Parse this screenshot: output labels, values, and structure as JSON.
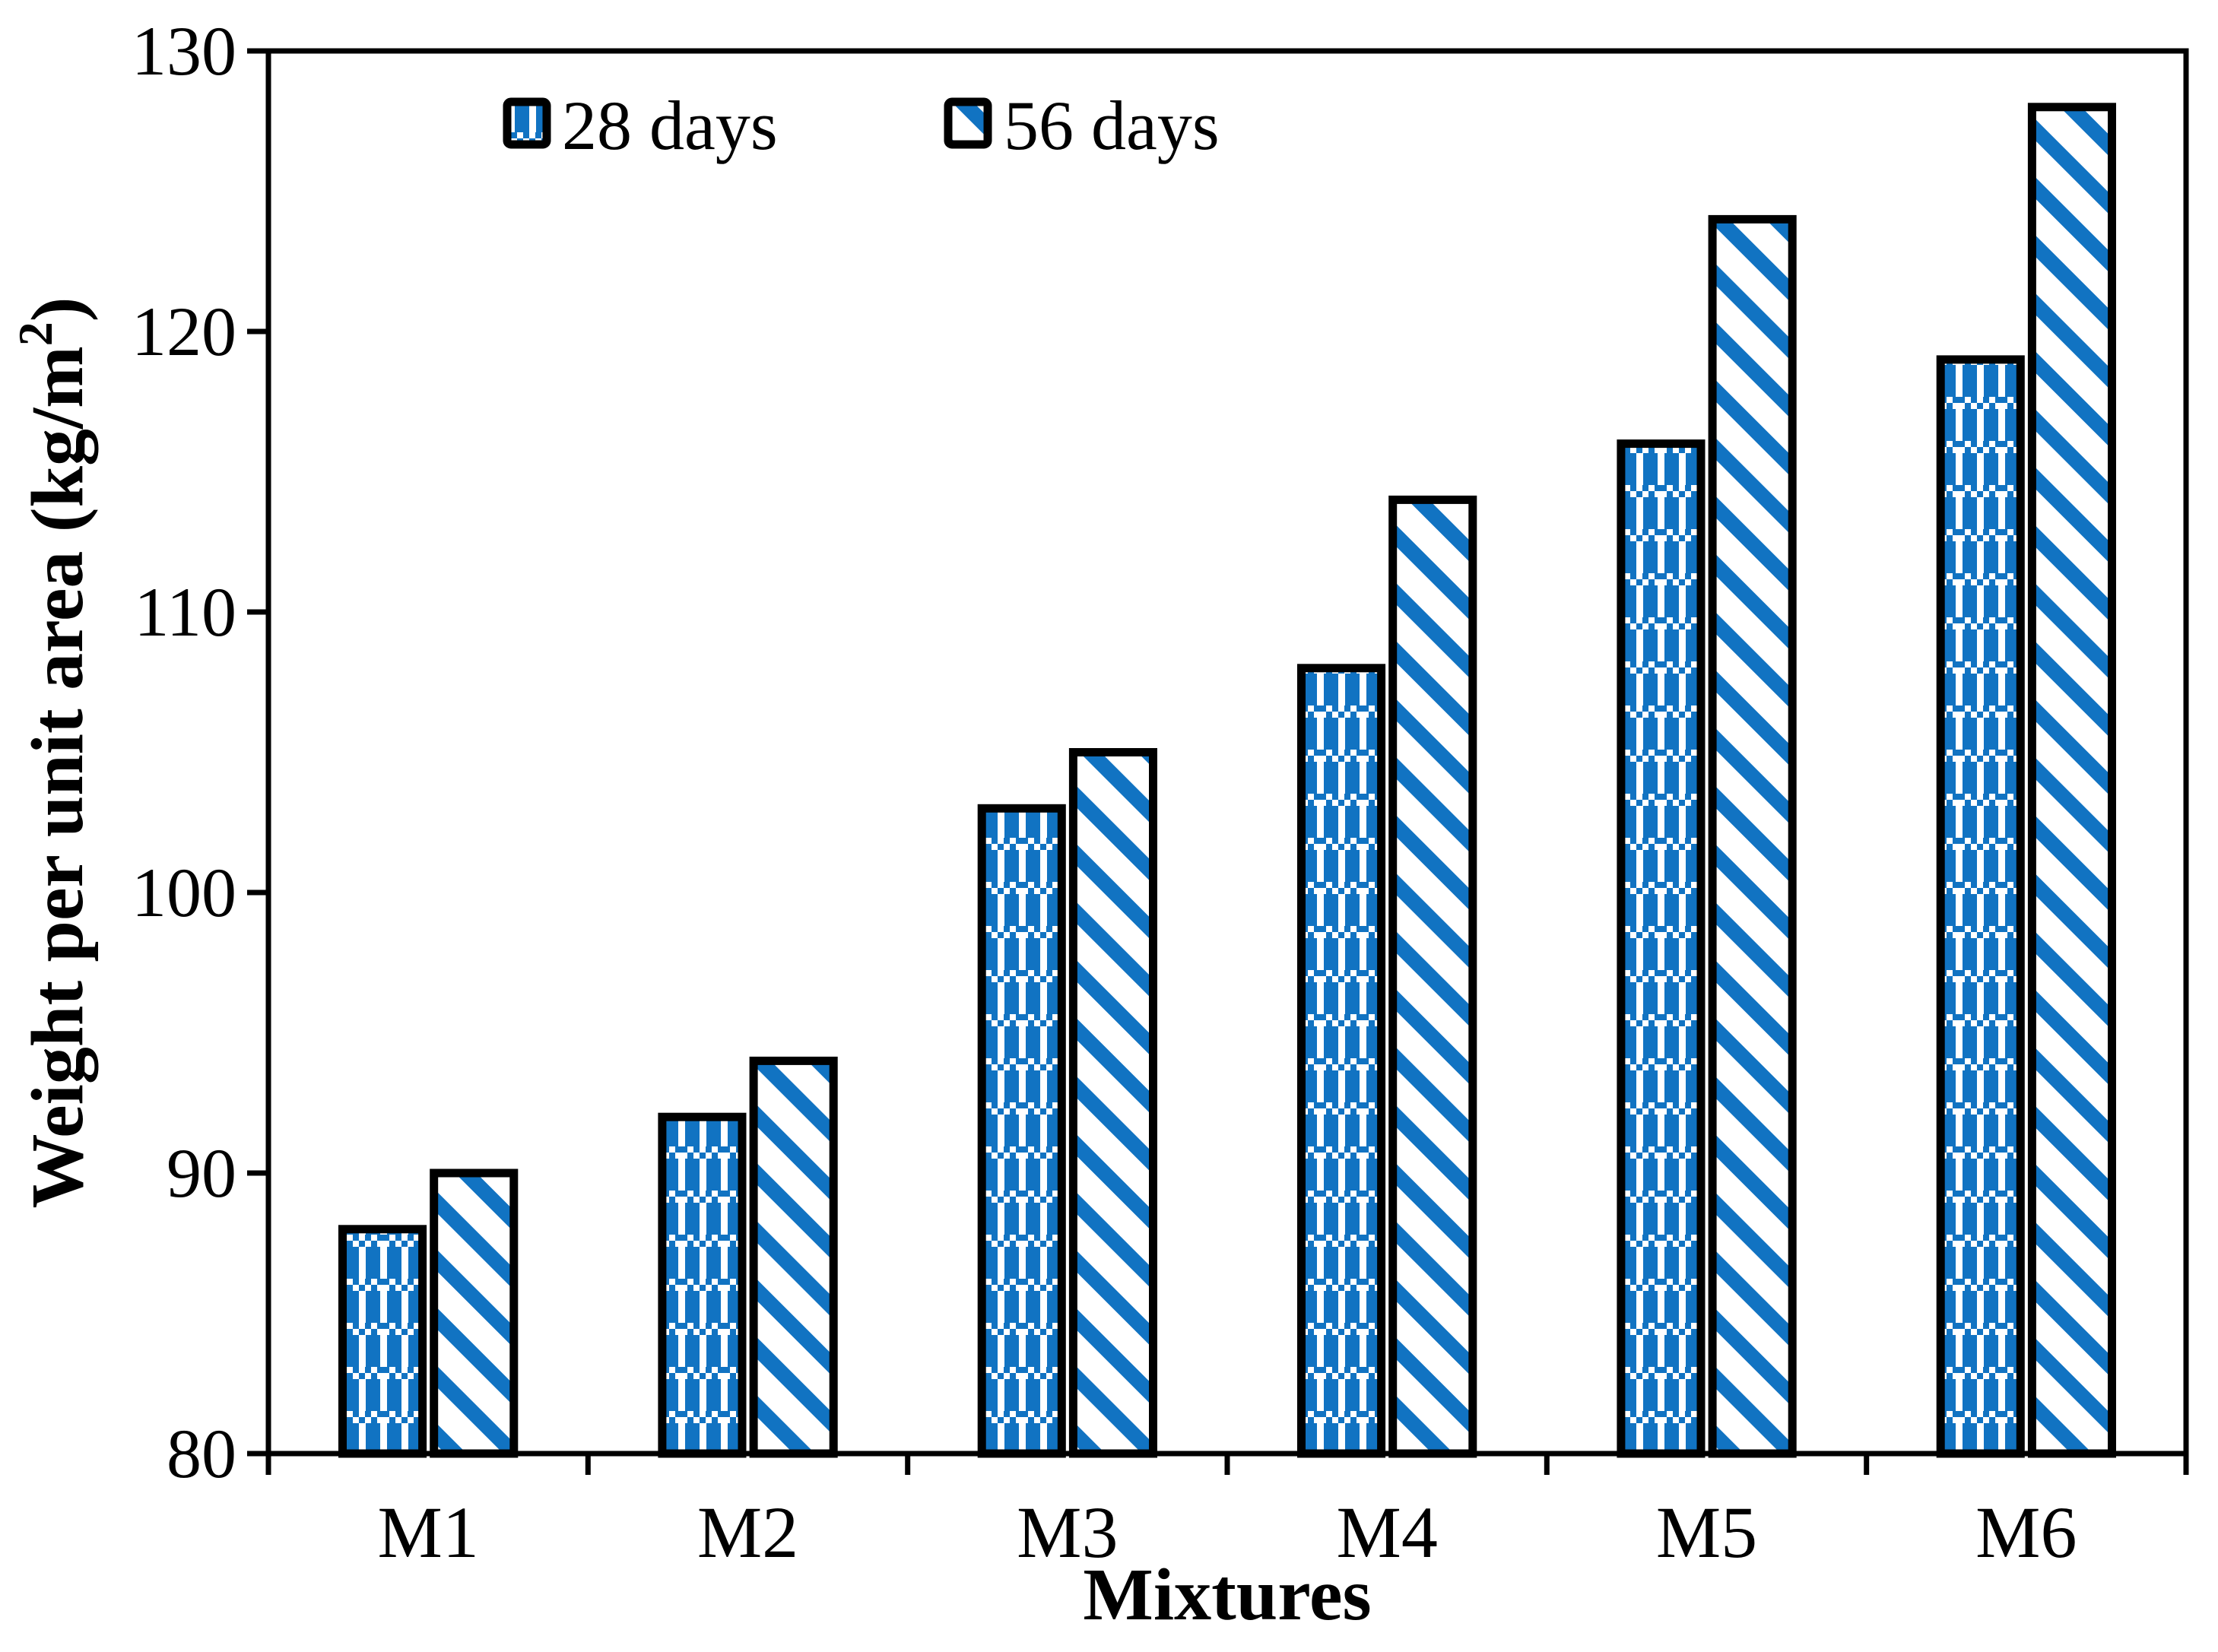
{
  "figure": {
    "background": "#ffffff"
  },
  "colors": {
    "accent_blue": "#1173C2",
    "axis_black": "#000000",
    "pattern_background": "#ffffff"
  },
  "legend": {
    "items": [
      {
        "label": "28 days",
        "swatch": "checker-plaid-swatch"
      },
      {
        "label": "56 days",
        "swatch": "diagonal-stripe-swatch"
      }
    ]
  },
  "yaxis": {
    "title_main": "Weight per unit area (kg/m",
    "title_sup": "2",
    "title_close": ")",
    "tick_labels": [
      "80",
      "90",
      "100",
      "110",
      "120",
      "130"
    ]
  },
  "xaxis": {
    "title": "Mixtures"
  },
  "chart_data": {
    "type": "bar",
    "categories": [
      "M1",
      "M2",
      "M3",
      "M4",
      "M5",
      "M6"
    ],
    "series": [
      {
        "name": "28 days",
        "pattern": "checker-plaid",
        "values": [
          88,
          92,
          103,
          108,
          116,
          119
        ]
      },
      {
        "name": "56 days",
        "pattern": "diagonal-stripes",
        "values": [
          90,
          94,
          105,
          114,
          124,
          128
        ]
      }
    ],
    "title": "",
    "xlabel": "Mixtures",
    "ylabel": "Weight per unit area (kg/m2)",
    "ylim": [
      80,
      130
    ],
    "yticks": [
      80,
      90,
      100,
      110,
      120,
      130
    ],
    "grid": false,
    "legend_position": "top-left-inside"
  }
}
